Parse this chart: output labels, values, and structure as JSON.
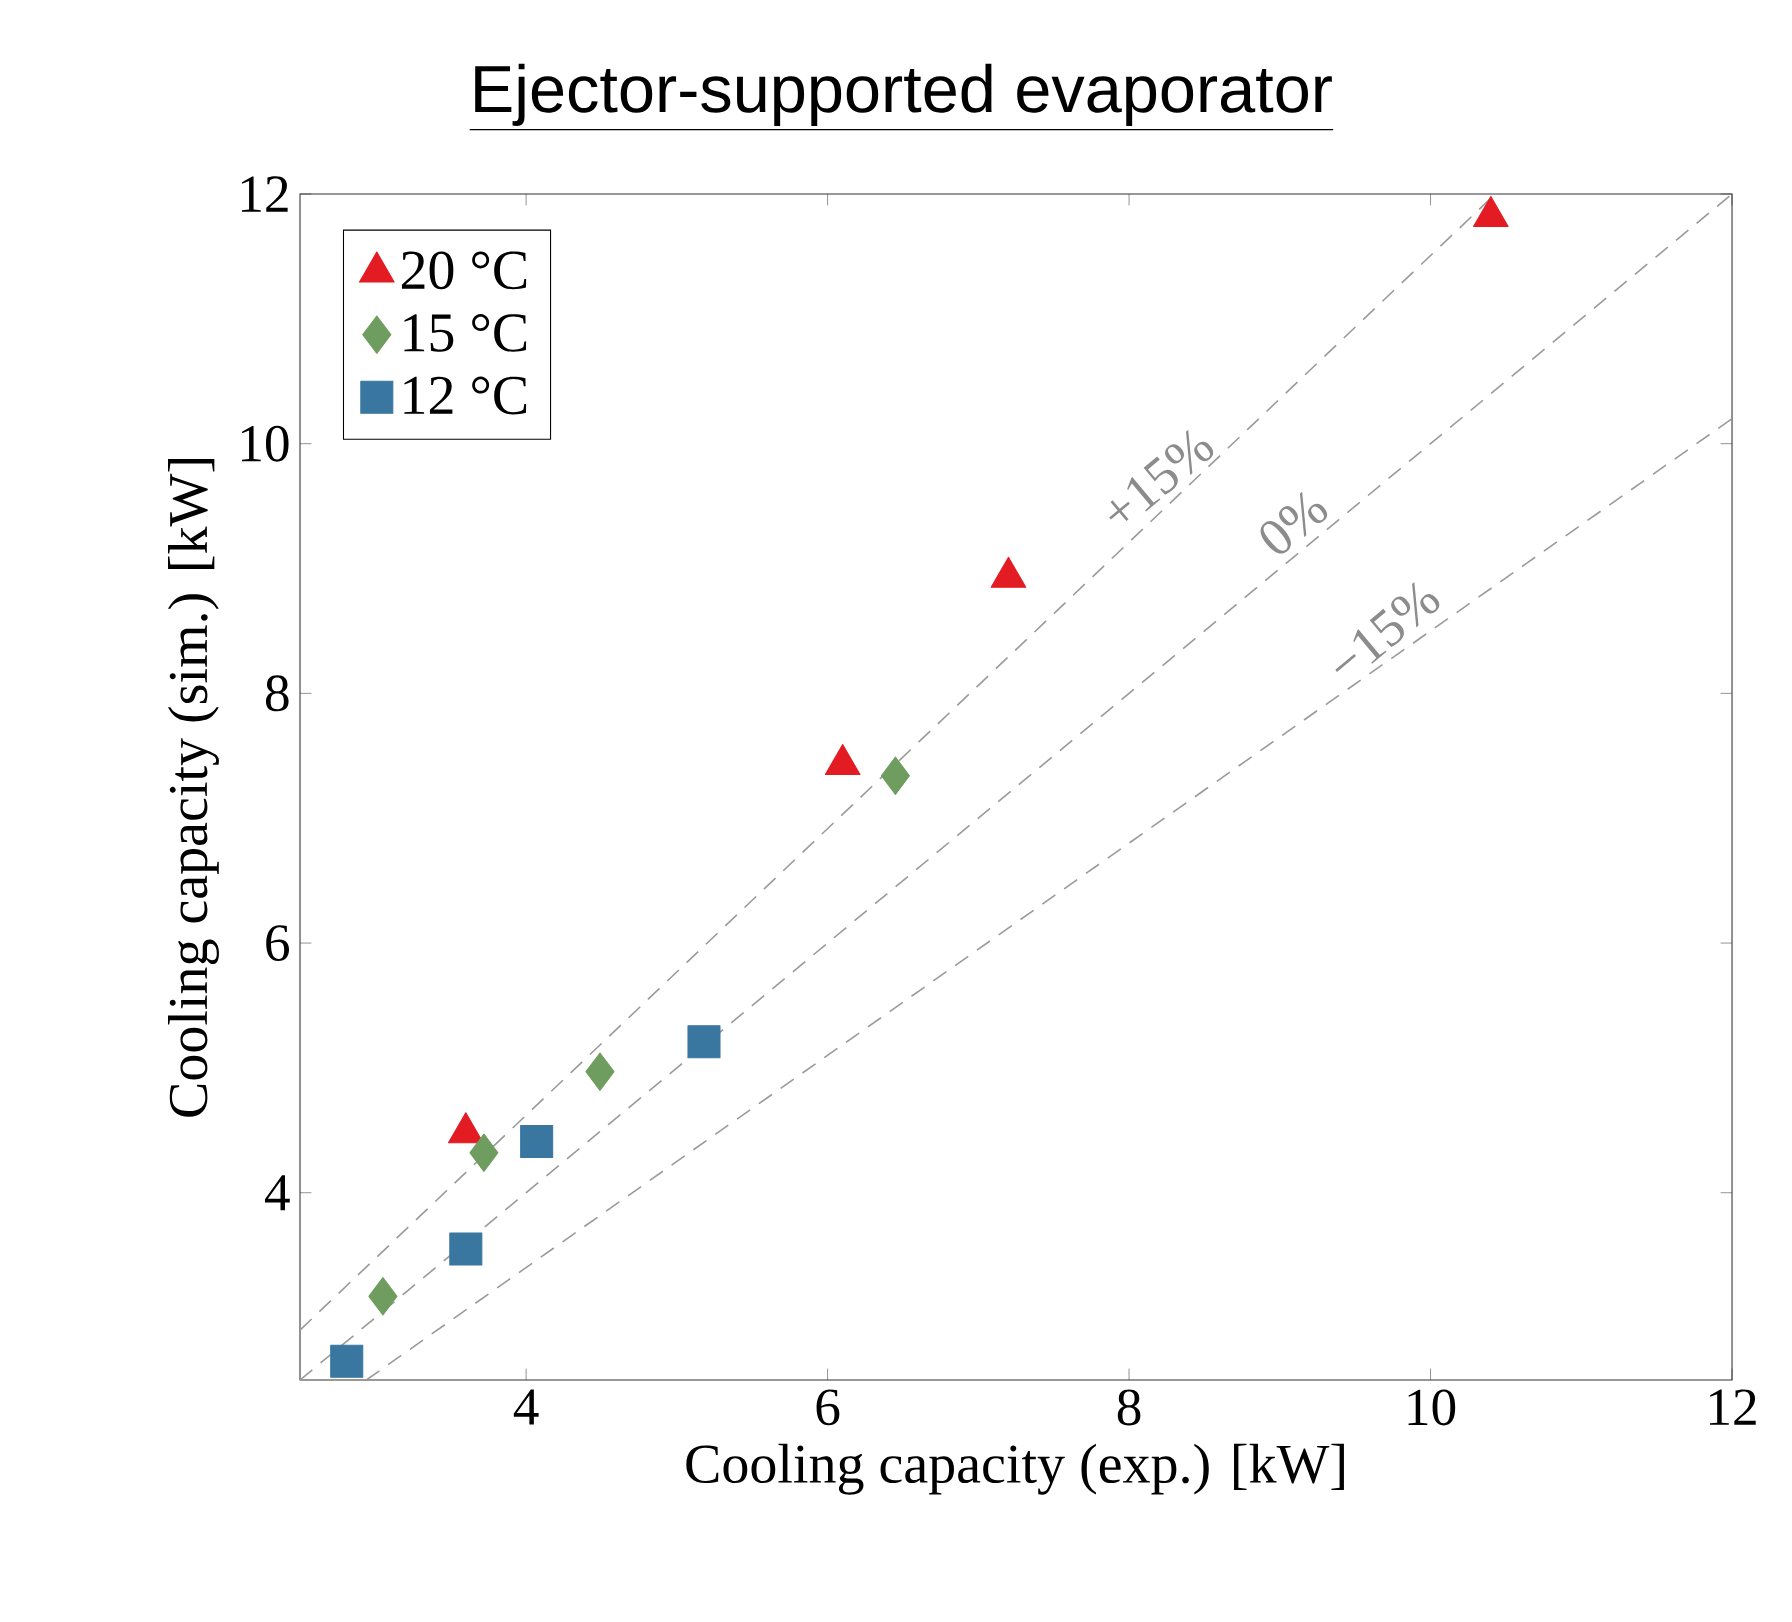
{
  "chart_data": {
    "type": "scatter",
    "title": "Ejector-supported evaporator",
    "xlabel": "Cooling capacity (exp.) [kW]",
    "ylabel": "Cooling capacity (sim.) [kW]",
    "xlim": [
      2.5,
      12
    ],
    "ylim": [
      2.5,
      12
    ],
    "xticks": [
      4,
      6,
      8,
      10,
      12
    ],
    "yticks": [
      4,
      6,
      8,
      10,
      12
    ],
    "grid": false,
    "legend": "top left",
    "series": [
      {
        "name": "20 °C",
        "marker": "triangle",
        "color": "#e31b23",
        "x": [
          3.6,
          6.1,
          7.2,
          10.4
        ],
        "values": [
          4.48,
          7.43,
          8.93,
          11.82
        ]
      },
      {
        "name": "15 °C",
        "marker": "diamond",
        "color": "#6f9c5f",
        "x": [
          3.05,
          3.72,
          4.49,
          6.45
        ],
        "values": [
          3.17,
          4.32,
          4.97,
          7.34
        ]
      },
      {
        "name": "12 °C",
        "marker": "square",
        "color": "#3a77a0",
        "x": [
          2.81,
          3.6,
          4.07,
          5.18
        ],
        "values": [
          2.65,
          3.55,
          4.41,
          5.21
        ]
      },
      {
        "type": "line",
        "line_style": "dashed",
        "marker": "none",
        "color": "#9a9a9a",
        "x": [
          2.5,
          10.43
        ],
        "values": [
          2.9,
          12
        ]
      },
      {
        "type": "line",
        "line_style": "dashed",
        "marker": "none",
        "color": "#9a9a9a",
        "x": [
          2.5,
          12
        ],
        "values": [
          2.5,
          12
        ]
      },
      {
        "type": "line",
        "line_style": "dashed",
        "marker": "none",
        "color": "#9a9a9a",
        "x": [
          2.94,
          12
        ],
        "values": [
          2.5,
          10.2
        ]
      }
    ],
    "annotations": [
      {
        "text": "+15%",
        "x": 8.3,
        "y": 9.55
      },
      {
        "text": "0%",
        "x": 9.2,
        "y": 9.2
      },
      {
        "text": "−15%",
        "x": 9.8,
        "y": 8.33
      }
    ]
  }
}
